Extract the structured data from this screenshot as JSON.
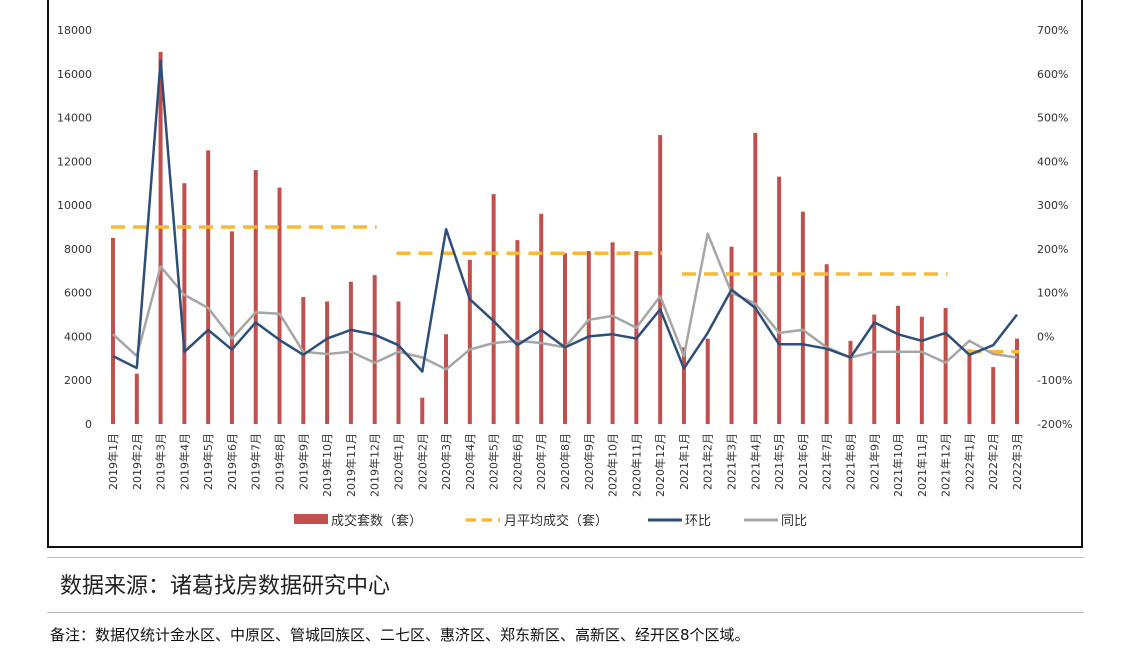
{
  "chart_data": {
    "type": "bar",
    "categories": [
      "2019年1月",
      "2019年2月",
      "2019年3月",
      "2019年4月",
      "2019年5月",
      "2019年6月",
      "2019年7月",
      "2019年8月",
      "2019年9月",
      "2019年10月",
      "2019年11月",
      "2019年12月",
      "2020年1月",
      "2020年2月",
      "2020年3月",
      "2020年4月",
      "2020年5月",
      "2020年6月",
      "2020年7月",
      "2020年8月",
      "2020年9月",
      "2020年10月",
      "2020年11月",
      "2020年12月",
      "2021年1月",
      "2021年2月",
      "2021年3月",
      "2021年4月",
      "2021年5月",
      "2021年6月",
      "2021年7月",
      "2021年8月",
      "2021年9月",
      "2021年10月",
      "2021年11月",
      "2021年12月",
      "2022年1月",
      "2022年2月",
      "2022年3月"
    ],
    "series": [
      {
        "name": "成交套数（套）",
        "kind": "bar",
        "axis": "left",
        "color": "#c0504d",
        "values": [
          8500,
          2300,
          17000,
          11000,
          12500,
          8800,
          11600,
          10800,
          5800,
          5600,
          6500,
          6800,
          5600,
          1200,
          4100,
          7500,
          10500,
          8400,
          9600,
          7800,
          7900,
          8300,
          7900,
          13200,
          3500,
          3900,
          8100,
          13300,
          11300,
          9700,
          7300,
          3800,
          5000,
          5400,
          4900,
          5300,
          3400,
          2600,
          3900
        ]
      },
      {
        "name": "月平均成交（套）",
        "kind": "dashed",
        "axis": "left",
        "color": "#f9b934",
        "segments": [
          {
            "from": "2019年1月",
            "to": "2019年12月",
            "value": 9000
          },
          {
            "from": "2020年1月",
            "to": "2020年12月",
            "value": 7800
          },
          {
            "from": "2021年1月",
            "to": "2021年12月",
            "value": 6850
          },
          {
            "from": "2022年1月",
            "to": "2022年3月",
            "value": 3300
          }
        ]
      },
      {
        "name": "环比",
        "kind": "line",
        "axis": "right",
        "color": "#2e4f7a",
        "values": [
          -45,
          -72,
          630,
          -35,
          15,
          -30,
          32,
          -8,
          -42,
          -5,
          15,
          4,
          -20,
          -80,
          245,
          85,
          35,
          -20,
          15,
          -25,
          0,
          5,
          -5,
          62,
          -73,
          8,
          107,
          65,
          -18,
          -18,
          -28,
          -48,
          32,
          5,
          -10,
          8,
          -42,
          -20,
          50
        ]
      },
      {
        "name": "同比",
        "kind": "line",
        "axis": "right",
        "color": "#a6a6a6",
        "values": [
          5,
          -45,
          160,
          95,
          65,
          -5,
          55,
          52,
          -35,
          -40,
          -35,
          -60,
          -35,
          -48,
          -75,
          -30,
          -15,
          -10,
          -15,
          -25,
          38,
          47,
          20,
          92,
          -45,
          235,
          100,
          75,
          8,
          15,
          -25,
          -48,
          -35,
          -35,
          -35,
          -60,
          -10,
          -40,
          -48
        ]
      }
    ],
    "y_left": {
      "ylim": [
        0,
        18000
      ],
      "ticks": [
        "0",
        "2000",
        "4000",
        "6000",
        "8000",
        "10000",
        "12000",
        "14000",
        "16000",
        "18000"
      ]
    },
    "y_right": {
      "ylim": [
        -200,
        700
      ],
      "ticks": [
        "-200%",
        "-100%",
        "0%",
        "100%",
        "200%",
        "300%",
        "400%",
        "500%",
        "600%",
        "700%"
      ]
    },
    "legend_position": "bottom",
    "grid": false
  },
  "source_text": "数据来源：诸葛找房数据研究中心",
  "note_text": "备注：数据仅统计金水区、中原区、管城回族区、二七区、惠济区、郑东新区、高新区、经开区8个区域。"
}
